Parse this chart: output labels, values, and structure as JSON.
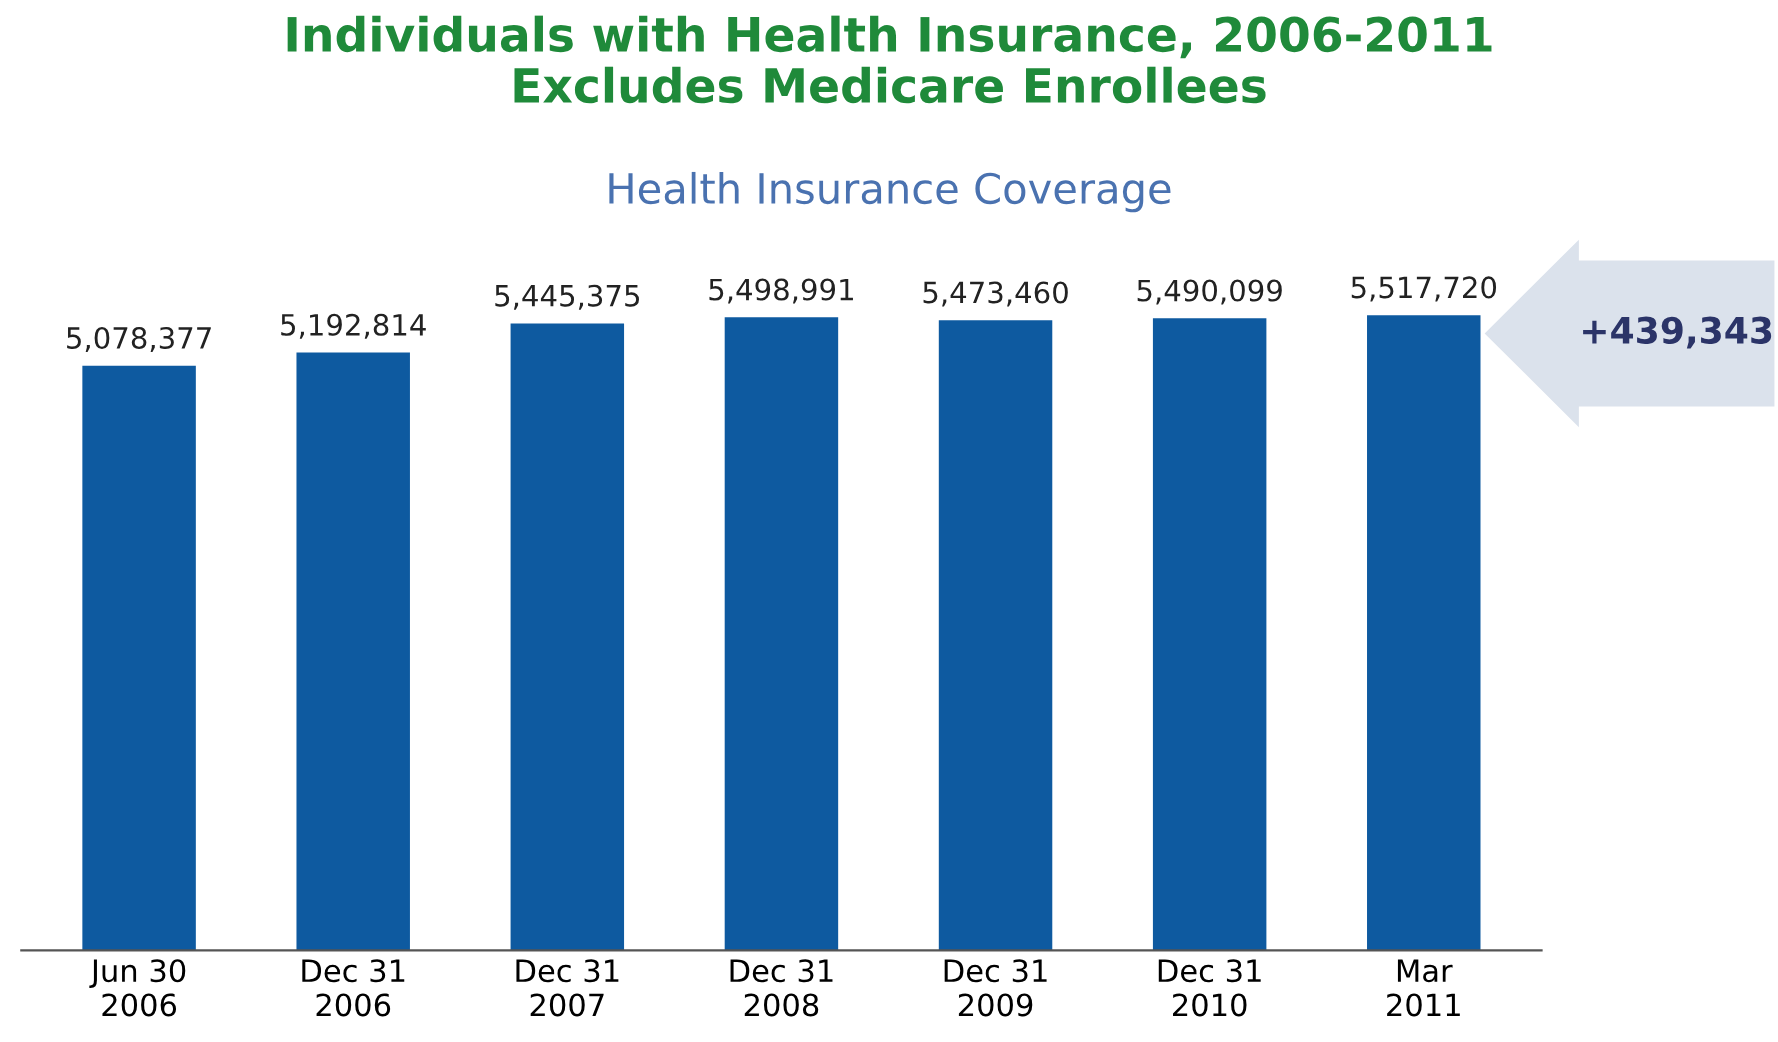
{
  "chart_data": {
    "type": "bar",
    "title": "Individuals with Health Insurance, 2006-2011\nExcludes Medicare Enrollees",
    "subtitle": "Health Insurance Coverage",
    "categories": [
      "Jun 30\n2006",
      "Dec 31\n2006",
      "Dec 31\n2007",
      "Dec 31\n2008",
      "Dec 31\n2009",
      "Dec 31\n2010",
      "Mar\n2011"
    ],
    "values": [
      5078377,
      5192814,
      5445375,
      5498991,
      5473460,
      5490099,
      5517720
    ],
    "value_labels": [
      "5,078,377",
      "5,192,814",
      "5,445,375",
      "5,498,991",
      "5,473,460",
      "5,490,099",
      "5,517,720"
    ],
    "color": "#0e5aa0",
    "grid": false,
    "legend": false,
    "annotations": [
      "+439,343"
    ]
  }
}
